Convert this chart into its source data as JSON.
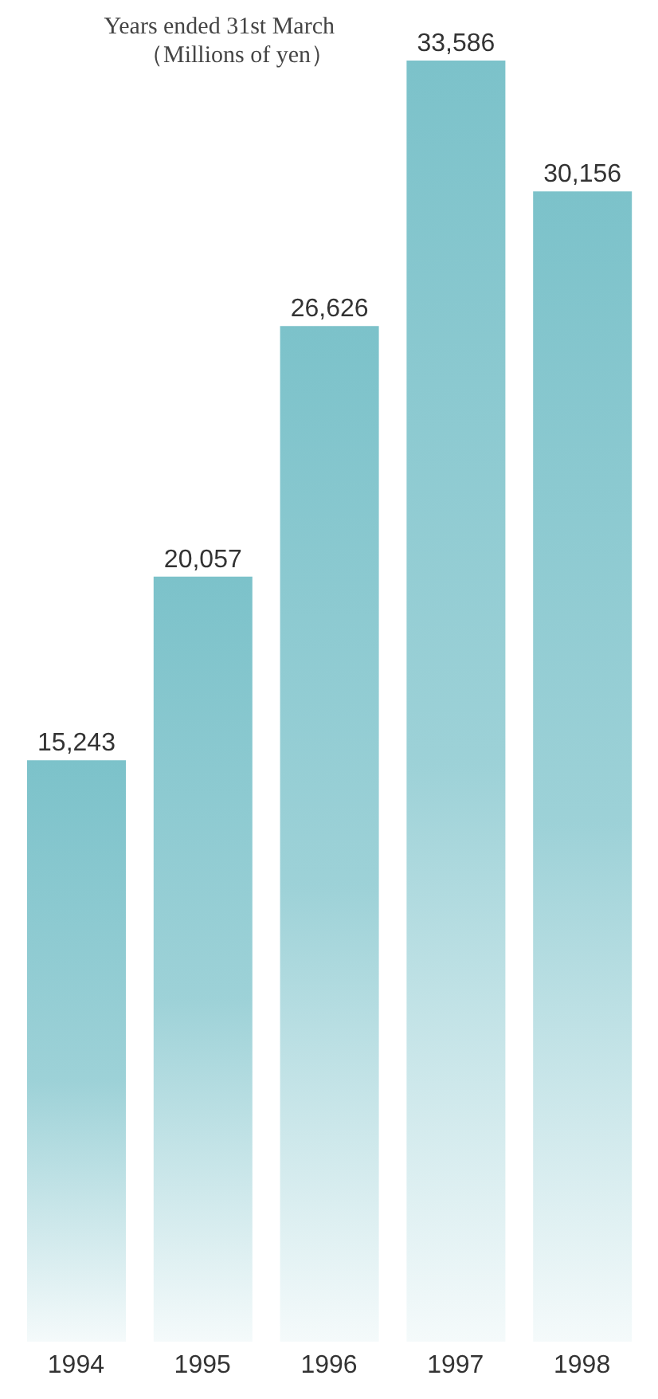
{
  "chart_data": {
    "type": "bar",
    "title": "Years ended 31st March",
    "subtitle": "（Millions of yen）",
    "categories": [
      "1994",
      "1995",
      "1996",
      "1997",
      "1998"
    ],
    "values": [
      15243,
      20057,
      26626,
      33586,
      30156
    ],
    "value_labels": [
      "15,243",
      "20,057",
      "26,626",
      "33,586",
      "30,156"
    ],
    "color": "#7cc2ca",
    "grid": false,
    "tick_labels": "x"
  }
}
